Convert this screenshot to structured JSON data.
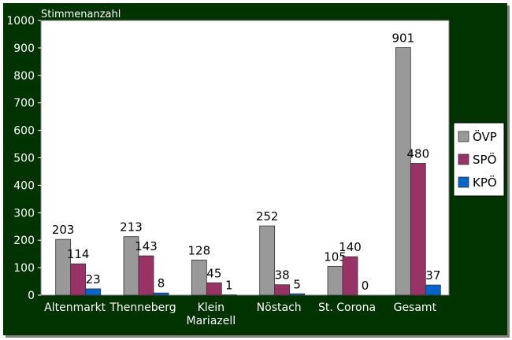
{
  "chart_data": {
    "type": "bar",
    "title": "",
    "xlabel": "",
    "ylabel": "Stimmenanzahl",
    "ylim": [
      0,
      1000
    ],
    "ytick_step": 100,
    "grid": false,
    "legend_position": "right",
    "categories": [
      [
        "Altenmarkt"
      ],
      [
        "Thenneberg"
      ],
      [
        "Klein",
        "Mariazell"
      ],
      [
        "Nöstach"
      ],
      [
        "St. Corona"
      ],
      [
        "Gesamt"
      ]
    ],
    "series": [
      {
        "name": "ÖVP",
        "color": "#999999",
        "values": [
          203,
          213,
          128,
          252,
          105,
          901
        ]
      },
      {
        "name": "SPÖ",
        "color": "#993366",
        "values": [
          114,
          143,
          45,
          38,
          140,
          480
        ]
      },
      {
        "name": "KPÖ",
        "color": "#0066cc",
        "values": [
          23,
          8,
          1,
          5,
          0,
          37
        ]
      }
    ],
    "plot_background": "#ffffff",
    "frame_background": "#003300"
  }
}
